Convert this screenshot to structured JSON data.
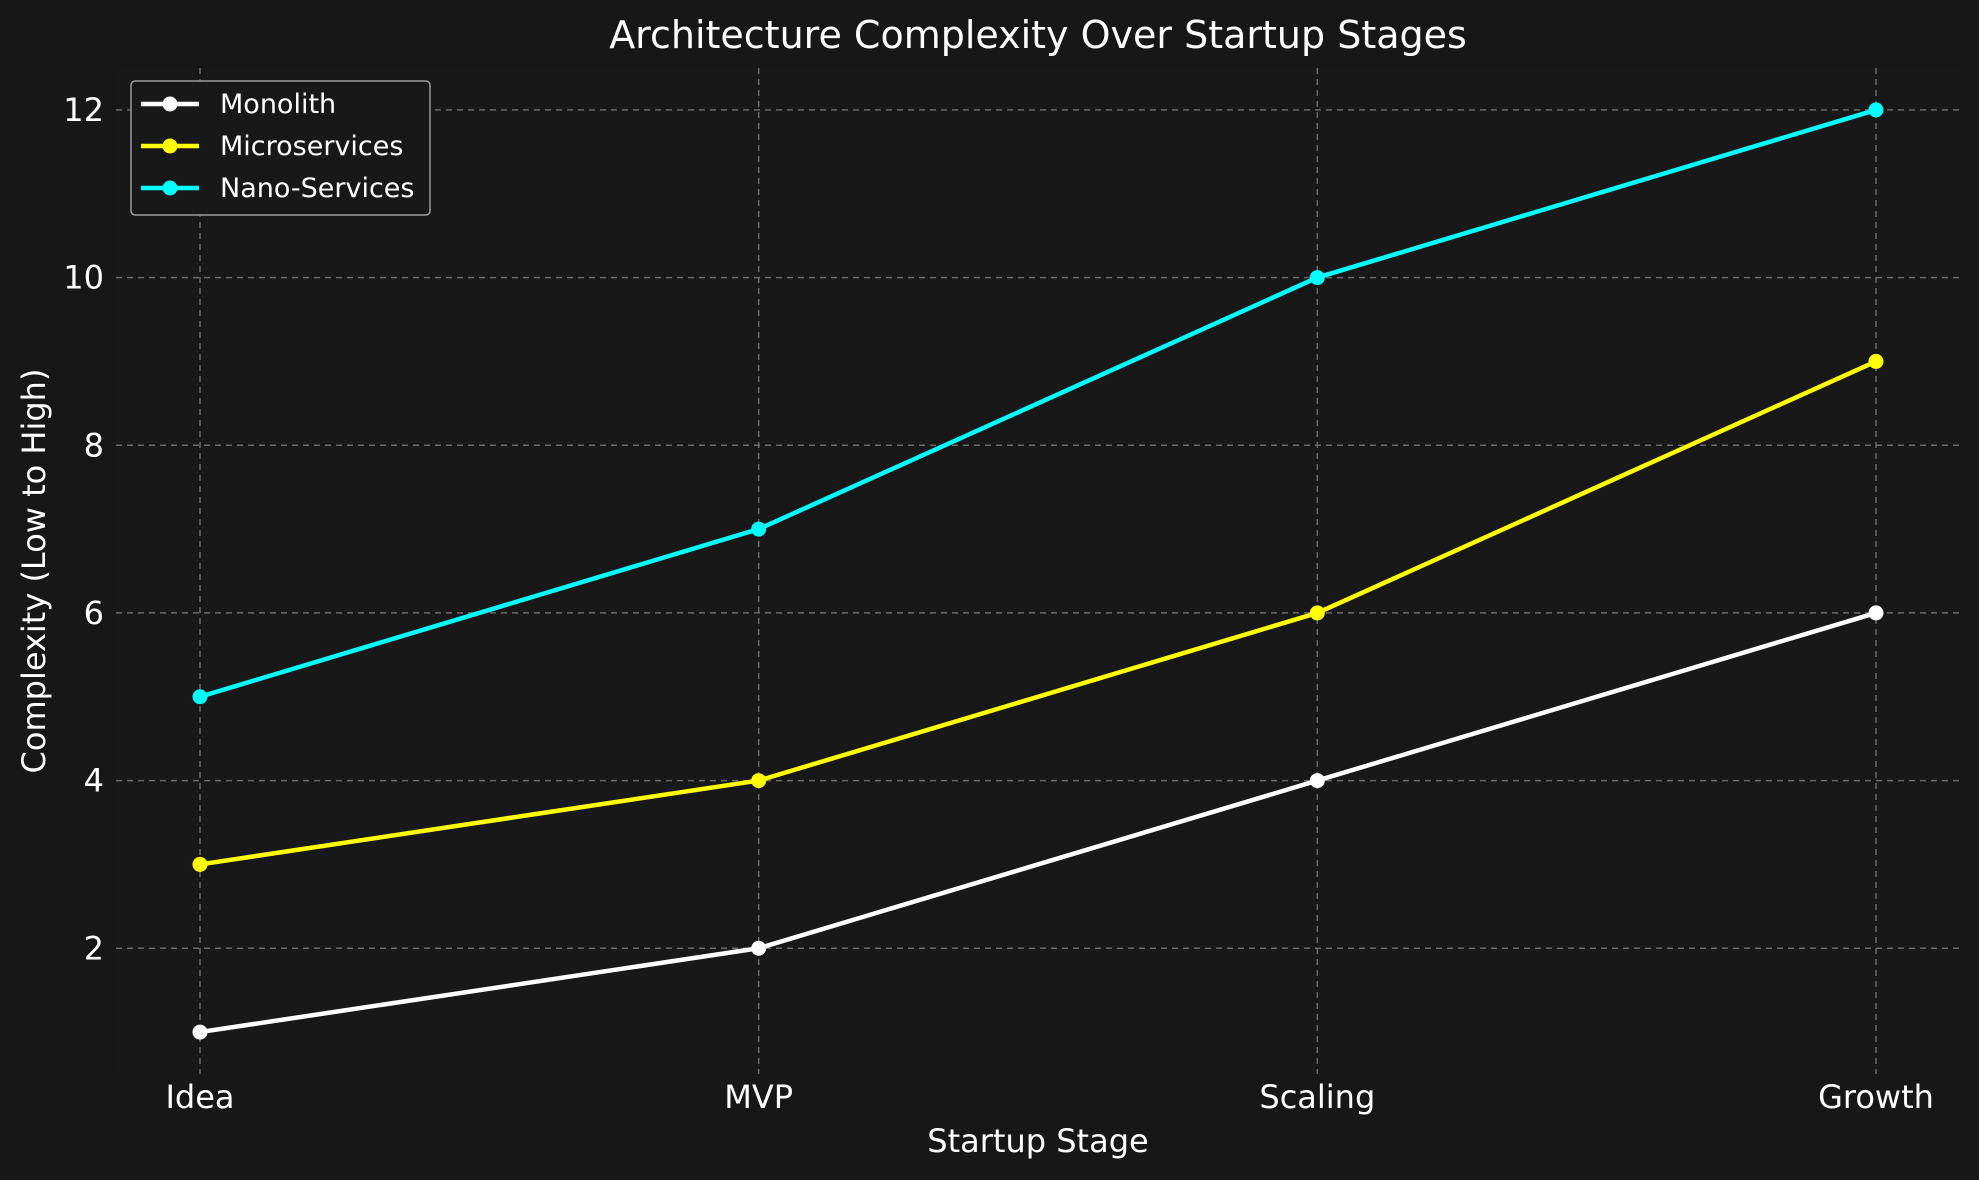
{
  "chart_data": {
    "type": "line",
    "title": "Architecture Complexity Over Startup Stages",
    "xlabel": "Startup Stage",
    "ylabel": "Complexity (Low to High)",
    "categories": [
      "Idea",
      "MVP",
      "Scaling",
      "Growth"
    ],
    "ylim": [
      0.5,
      12.5
    ],
    "yticks": [
      2,
      4,
      6,
      8,
      10,
      12
    ],
    "grid": true,
    "legend_position": "top-left",
    "series": [
      {
        "name": "Monolith",
        "color": "#ffffff",
        "values": [
          1,
          2,
          4,
          6
        ]
      },
      {
        "name": "Microservices",
        "color": "#ffff00",
        "values": [
          3,
          4,
          6,
          9
        ]
      },
      {
        "name": "Nano-Services",
        "color": "#00ffff",
        "values": [
          5,
          7,
          10,
          12
        ]
      }
    ]
  }
}
